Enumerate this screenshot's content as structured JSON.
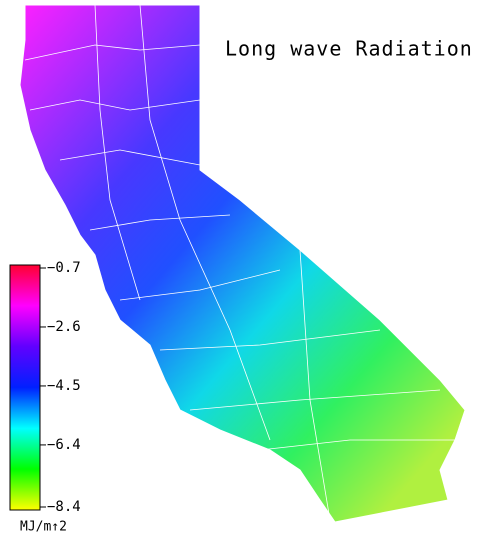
{
  "map": {
    "title": "Long wave Radiation",
    "colorbar": {
      "range": [
        -8.4,
        -0.7
      ],
      "ticks": [
        {
          "value": -0.7,
          "label": "−0.7"
        },
        {
          "value": -2.6,
          "label": "−2.6"
        },
        {
          "value": -4.5,
          "label": "−4.5"
        },
        {
          "value": -6.4,
          "label": "−6.4"
        },
        {
          "value": -8.4,
          "label": "−8.4"
        }
      ],
      "colors": [
        "#ff0030",
        "#ff00ff",
        "#6000ff",
        "#0020ff",
        "#00ffff",
        "#00ff00",
        "#ffff00"
      ],
      "unit": "MJ/m↑2"
    }
  }
}
